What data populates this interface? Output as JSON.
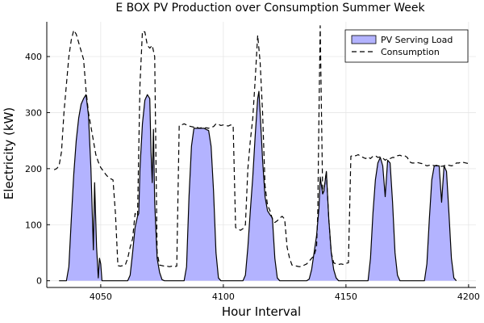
{
  "chart_data": {
    "type": "area",
    "title": "E BOX PV Production over Consumption Summer Week",
    "xlabel": "Hour Interval",
    "ylabel": "Electricity (kW)",
    "xlim": [
      4028,
      4203
    ],
    "ylim": [
      -12,
      462
    ],
    "xticks": [
      4050,
      4100,
      4150,
      4200
    ],
    "yticks": [
      0,
      100,
      200,
      300,
      400
    ],
    "grid": true,
    "legend_position": "top-right",
    "series": [
      {
        "name": "PV Serving Load",
        "style": "filled-area",
        "fill_color": "#b3b3ff",
        "line_color": "#000000",
        "points": [
          [
            4033,
            0
          ],
          [
            4036,
            0
          ],
          [
            4037,
            25
          ],
          [
            4038,
            110
          ],
          [
            4039,
            190
          ],
          [
            4040,
            250
          ],
          [
            4041,
            290
          ],
          [
            4042,
            315
          ],
          [
            4043,
            325
          ],
          [
            4044,
            332
          ],
          [
            4045,
            295
          ],
          [
            4046,
            200
          ],
          [
            4047,
            55
          ],
          [
            4047.5,
            175
          ],
          [
            4048.3,
            60
          ],
          [
            4049,
            5
          ],
          [
            4049.5,
            40
          ],
          [
            4050,
            30
          ],
          [
            4050.5,
            0
          ],
          [
            4060,
            0
          ],
          [
            4061,
            0
          ],
          [
            4062,
            10
          ],
          [
            4063,
            50
          ],
          [
            4064,
            95
          ],
          [
            4065,
            115
          ],
          [
            4065.5,
            120
          ],
          [
            4066,
            200
          ],
          [
            4067,
            280
          ],
          [
            4068,
            322
          ],
          [
            4069,
            332
          ],
          [
            4070,
            325
          ],
          [
            4070.5,
            230
          ],
          [
            4071,
            175
          ],
          [
            4071.5,
            270
          ],
          [
            4072,
            140
          ],
          [
            4073,
            40
          ],
          [
            4074,
            15
          ],
          [
            4075,
            2
          ],
          [
            4076,
            0
          ],
          [
            4083,
            0
          ],
          [
            4084,
            0
          ],
          [
            4085,
            25
          ],
          [
            4086,
            150
          ],
          [
            4087,
            240
          ],
          [
            4088,
            272
          ],
          [
            4090,
            272
          ],
          [
            4092,
            272
          ],
          [
            4094,
            268
          ],
          [
            4095,
            240
          ],
          [
            4096,
            160
          ],
          [
            4097,
            50
          ],
          [
            4098,
            5
          ],
          [
            4099,
            0
          ],
          [
            4107,
            0
          ],
          [
            4108,
            0
          ],
          [
            4109,
            10
          ],
          [
            4110,
            60
          ],
          [
            4111,
            125
          ],
          [
            4112,
            185
          ],
          [
            4113,
            260
          ],
          [
            4114,
            325
          ],
          [
            4114.5,
            338
          ],
          [
            4115,
            300
          ],
          [
            4116,
            215
          ],
          [
            4117,
            150
          ],
          [
            4118,
            125
          ],
          [
            4119,
            118
          ],
          [
            4120,
            112
          ],
          [
            4121,
            40
          ],
          [
            4122,
            5
          ],
          [
            4123,
            0
          ],
          [
            4133,
            0
          ],
          [
            4134,
            0
          ],
          [
            4135,
            3
          ],
          [
            4136,
            20
          ],
          [
            4137,
            50
          ],
          [
            4138,
            80
          ],
          [
            4139,
            130
          ],
          [
            4139.5,
            185
          ],
          [
            4140.5,
            155
          ],
          [
            4141,
            160
          ],
          [
            4142,
            195
          ],
          [
            4143,
            110
          ],
          [
            4144,
            50
          ],
          [
            4145,
            20
          ],
          [
            4146,
            5
          ],
          [
            4147,
            0
          ],
          [
            4158,
            0
          ],
          [
            4159,
            0
          ],
          [
            4160,
            40
          ],
          [
            4161,
            120
          ],
          [
            4162,
            180
          ],
          [
            4163,
            210
          ],
          [
            4164,
            220
          ],
          [
            4165,
            205
          ],
          [
            4166,
            150
          ],
          [
            4167,
            215
          ],
          [
            4168,
            210
          ],
          [
            4169,
            140
          ],
          [
            4170,
            50
          ],
          [
            4171,
            10
          ],
          [
            4172,
            0
          ],
          [
            4181,
            0
          ],
          [
            4182,
            0
          ],
          [
            4183,
            30
          ],
          [
            4184,
            110
          ],
          [
            4185,
            180
          ],
          [
            4186,
            205
          ],
          [
            4188,
            205
          ],
          [
            4189,
            140
          ],
          [
            4190,
            205
          ],
          [
            4191,
            195
          ],
          [
            4192,
            120
          ],
          [
            4193,
            40
          ],
          [
            4194,
            5
          ],
          [
            4195,
            0
          ]
        ]
      },
      {
        "name": "Consumption",
        "style": "dashed-line",
        "line_color": "#000000",
        "points": [
          [
            4031,
            198
          ],
          [
            4032,
            200
          ],
          [
            4033,
            205
          ],
          [
            4034,
            230
          ],
          [
            4035,
            300
          ],
          [
            4036,
            350
          ],
          [
            4037,
            400
          ],
          [
            4038,
            430
          ],
          [
            4039,
            447
          ],
          [
            4040,
            440
          ],
          [
            4041,
            425
          ],
          [
            4042,
            410
          ],
          [
            4043,
            395
          ],
          [
            4044,
            340
          ],
          [
            4045,
            300
          ],
          [
            4046,
            275
          ],
          [
            4047,
            250
          ],
          [
            4048,
            225
          ],
          [
            4049,
            212
          ],
          [
            4050,
            202
          ],
          [
            4051,
            196
          ],
          [
            4052,
            190
          ],
          [
            4053,
            185
          ],
          [
            4054,
            182
          ],
          [
            4055,
            180
          ],
          [
            4056,
            120
          ],
          [
            4057,
            27
          ],
          [
            4058,
            26
          ],
          [
            4059,
            27
          ],
          [
            4060,
            28
          ],
          [
            4061,
            40
          ],
          [
            4062,
            60
          ],
          [
            4063,
            75
          ],
          [
            4064,
            120
          ],
          [
            4065,
            115
          ],
          [
            4066,
            350
          ],
          [
            4067,
            445
          ],
          [
            4068,
            444
          ],
          [
            4069,
            420
          ],
          [
            4070,
            415
          ],
          [
            4071,
            420
          ],
          [
            4072,
            400
          ],
          [
            4073,
            50
          ],
          [
            4074,
            28
          ],
          [
            4075,
            27
          ],
          [
            4076,
            26
          ],
          [
            4077,
            26
          ],
          [
            4078,
            25
          ],
          [
            4079,
            26
          ],
          [
            4080,
            25
          ],
          [
            4081,
            26
          ],
          [
            4082,
            277
          ],
          [
            4083,
            278
          ],
          [
            4084,
            280
          ],
          [
            4085,
            278
          ],
          [
            4086,
            276
          ],
          [
            4087,
            275
          ],
          [
            4088,
            274
          ],
          [
            4089,
            275
          ],
          [
            4090,
            272
          ],
          [
            4091,
            273
          ],
          [
            4092,
            272
          ],
          [
            4093,
            273
          ],
          [
            4094,
            272
          ],
          [
            4095,
            274
          ],
          [
            4096,
            275
          ],
          [
            4097,
            280
          ],
          [
            4098,
            279
          ],
          [
            4099,
            277
          ],
          [
            4100,
            278
          ],
          [
            4101,
            277
          ],
          [
            4102,
            276
          ],
          [
            4103,
            278
          ],
          [
            4104,
            277
          ],
          [
            4105,
            95
          ],
          [
            4106,
            92
          ],
          [
            4107,
            90
          ],
          [
            4108,
            93
          ],
          [
            4109,
            100
          ],
          [
            4110,
            200
          ],
          [
            4111,
            250
          ],
          [
            4112,
            290
          ],
          [
            4113,
            360
          ],
          [
            4114,
            438
          ],
          [
            4115,
            390
          ],
          [
            4116,
            300
          ],
          [
            4117,
            170
          ],
          [
            4118,
            135
          ],
          [
            4119,
            125
          ],
          [
            4120,
            110
          ],
          [
            4121,
            104
          ],
          [
            4122,
            107
          ],
          [
            4123,
            112
          ],
          [
            4124,
            115
          ],
          [
            4125,
            110
          ],
          [
            4126,
            60
          ],
          [
            4127,
            40
          ],
          [
            4128,
            28
          ],
          [
            4129,
            27
          ],
          [
            4130,
            26
          ],
          [
            4131,
            25
          ],
          [
            4132,
            26
          ],
          [
            4133,
            28
          ],
          [
            4134,
            30
          ],
          [
            4135,
            35
          ],
          [
            4136,
            40
          ],
          [
            4137,
            45
          ],
          [
            4138,
            60
          ],
          [
            4138.5,
            120
          ],
          [
            4139,
            300
          ],
          [
            4139.5,
            455
          ],
          [
            4140.5,
            155
          ],
          [
            4141,
            160
          ],
          [
            4142,
            195
          ],
          [
            4143,
            110
          ],
          [
            4144,
            50
          ],
          [
            4145,
            32
          ],
          [
            4146,
            30
          ],
          [
            4147,
            29
          ],
          [
            4148,
            30
          ],
          [
            4149,
            29
          ],
          [
            4150,
            31
          ],
          [
            4151,
            32
          ],
          [
            4152,
            222
          ],
          [
            4153,
            224
          ],
          [
            4154,
            223
          ],
          [
            4155,
            225
          ],
          [
            4156,
            222
          ],
          [
            4157,
            220
          ],
          [
            4158,
            218
          ],
          [
            4159,
            221
          ],
          [
            4160,
            218
          ],
          [
            4161,
            222
          ],
          [
            4162,
            223
          ],
          [
            4163,
            220
          ],
          [
            4164,
            221
          ],
          [
            4165,
            219
          ],
          [
            4166,
            215
          ],
          [
            4167,
            218
          ],
          [
            4168,
            218
          ],
          [
            4169,
            220
          ],
          [
            4170,
            220
          ],
          [
            4171,
            223
          ],
          [
            4172,
            224
          ],
          [
            4173,
            222
          ],
          [
            4174,
            223
          ],
          [
            4175,
            220
          ],
          [
            4176,
            212
          ],
          [
            4177,
            210
          ],
          [
            4178,
            210
          ],
          [
            4179,
            211
          ],
          [
            4180,
            210
          ],
          [
            4181,
            209
          ],
          [
            4182,
            207
          ],
          [
            4183,
            205
          ],
          [
            4184,
            206
          ],
          [
            4185,
            207
          ],
          [
            4186,
            205
          ],
          [
            4187,
            206
          ],
          [
            4188,
            205
          ],
          [
            4189,
            204
          ],
          [
            4190,
            205
          ],
          [
            4191,
            207
          ],
          [
            4192,
            206
          ],
          [
            4193,
            205
          ],
          [
            4194,
            206
          ],
          [
            4195,
            210
          ],
          [
            4196,
            210
          ],
          [
            4197,
            212
          ],
          [
            4198,
            211
          ],
          [
            4199,
            210
          ],
          [
            4200,
            209
          ]
        ]
      }
    ]
  }
}
